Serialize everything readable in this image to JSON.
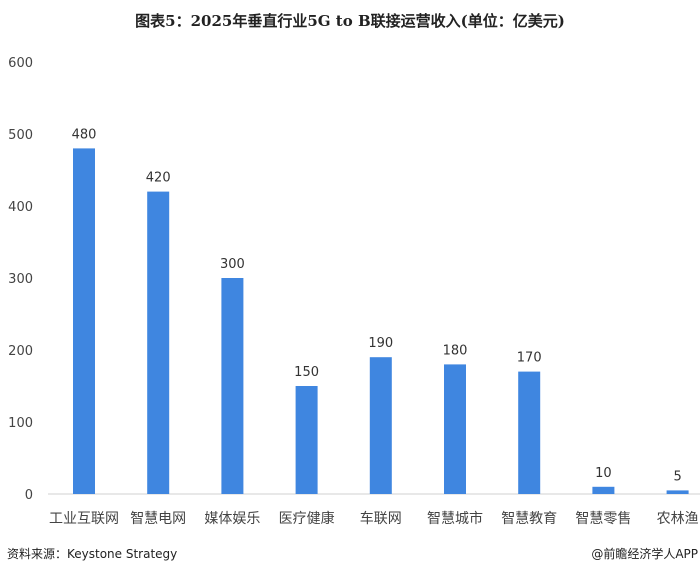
{
  "chart_data": {
    "type": "bar",
    "title": "图表5：2025年垂直行业5G to B联接运营收入(单位：亿美元)",
    "categories": [
      "工业互联网",
      "智慧电网",
      "媒体娱乐",
      "医疗健康",
      "车联网",
      "智慧城市",
      "智慧教育",
      "智慧零售",
      "农林渔"
    ],
    "values": [
      480,
      420,
      300,
      150,
      190,
      180,
      170,
      10,
      5
    ],
    "yticks": [
      0,
      100,
      200,
      300,
      400,
      500,
      600
    ],
    "ylim": [
      0,
      600
    ],
    "grid": false,
    "bar_color": "#3F86E0",
    "xlabel": "",
    "ylabel": ""
  },
  "footer": {
    "source": "资料来源：Keystone Strategy",
    "credit": "@前瞻经济学人APP"
  }
}
